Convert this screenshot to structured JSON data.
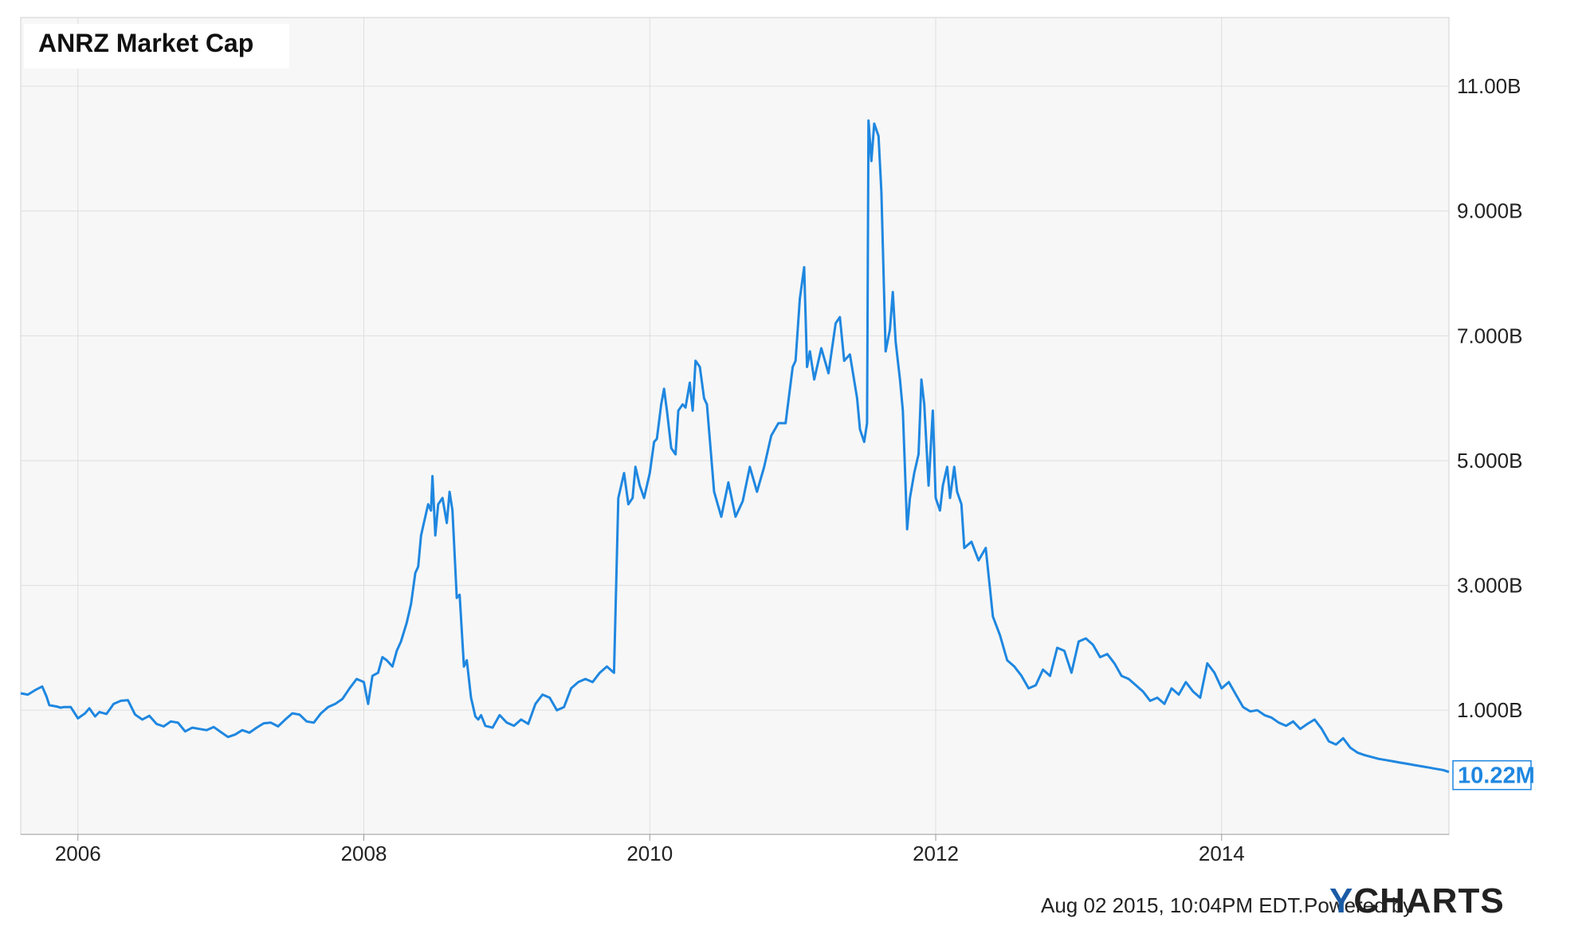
{
  "title": "ANRZ Market Cap",
  "footer": {
    "timestamp": "Aug 02 2015, 10:04PM EDT.",
    "powered_by": "Powered by",
    "brand_y": "Y",
    "brand_rest": "CHARTS"
  },
  "colors": {
    "line": "#1f87e0",
    "plot_bg": "#f7f7f7",
    "grid": "#dedede",
    "brand": "#1a5ba6"
  },
  "chart_data": {
    "type": "line",
    "title": "ANRZ Market Cap",
    "xlabel": "",
    "ylabel": "",
    "x_ticks": [
      "2006",
      "2008",
      "2010",
      "2012",
      "2014"
    ],
    "y_ticks": [
      "1.000B",
      "3.000B",
      "5.000B",
      "7.000B",
      "9.000B",
      "11.00B"
    ],
    "ylim": [
      -0.99,
      12.1
    ],
    "xlim": [
      2005.6,
      2015.59
    ],
    "grid": true,
    "y_axis_side": "right",
    "last_value_label": "10.22M",
    "series": [
      {
        "x": [
          2005.6,
          2005.65,
          2005.7,
          2005.75,
          2005.78,
          2005.8,
          2005.85,
          2005.88,
          2005.9,
          2005.95,
          2006.0,
          2006.05,
          2006.08,
          2006.12,
          2006.15,
          2006.2,
          2006.25,
          2006.3,
          2006.35,
          2006.4,
          2006.45,
          2006.5,
          2006.55,
          2006.6,
          2006.65,
          2006.7,
          2006.75,
          2006.8,
          2006.85,
          2006.9,
          2006.95,
          2007.0,
          2007.05,
          2007.1,
          2007.15,
          2007.2,
          2007.25,
          2007.3,
          2007.35,
          2007.4,
          2007.45,
          2007.5,
          2007.55,
          2007.6,
          2007.65,
          2007.7,
          2007.75,
          2007.8,
          2007.85,
          2007.9,
          2007.95,
          2008.0,
          2008.03,
          2008.06,
          2008.1,
          2008.13,
          2008.16,
          2008.2,
          2008.23,
          2008.26,
          2008.3,
          2008.33,
          2008.36,
          2008.38,
          2008.4,
          2008.42,
          2008.45,
          2008.47,
          2008.48,
          2008.5,
          2008.52,
          2008.55,
          2008.58,
          2008.6,
          2008.62,
          2008.65,
          2008.67,
          2008.7,
          2008.72,
          2008.75,
          2008.78,
          2008.8,
          2008.82,
          2008.85,
          2008.9,
          2008.95,
          2009.0,
          2009.05,
          2009.1,
          2009.15,
          2009.2,
          2009.25,
          2009.3,
          2009.35,
          2009.4,
          2009.45,
          2009.5,
          2009.55,
          2009.6,
          2009.65,
          2009.7,
          2009.75,
          2009.78,
          2009.8,
          2009.82,
          2009.85,
          2009.88,
          2009.9,
          2009.93,
          2009.96,
          2010.0,
          2010.03,
          2010.05,
          2010.08,
          2010.1,
          2010.12,
          2010.15,
          2010.18,
          2010.2,
          2010.23,
          2010.25,
          2010.28,
          2010.3,
          2010.32,
          2010.35,
          2010.38,
          2010.4,
          2010.45,
          2010.5,
          2010.55,
          2010.6,
          2010.65,
          2010.7,
          2010.75,
          2010.8,
          2010.85,
          2010.9,
          2010.95,
          2011.0,
          2011.02,
          2011.05,
          2011.08,
          2011.1,
          2011.12,
          2011.15,
          2011.2,
          2011.25,
          2011.3,
          2011.33,
          2011.36,
          2011.4,
          2011.45,
          2011.47,
          2011.5,
          2011.52,
          2011.53,
          2011.55,
          2011.57,
          2011.6,
          2011.62,
          2011.65,
          2011.68,
          2011.7,
          2011.72,
          2011.75,
          2011.77,
          2011.8,
          2011.82,
          2011.85,
          2011.88,
          2011.9,
          2011.92,
          2011.95,
          2011.98,
          2012.0,
          2012.03,
          2012.05,
          2012.08,
          2012.1,
          2012.13,
          2012.15,
          2012.18,
          2012.2,
          2012.25,
          2012.3,
          2012.35,
          2012.4,
          2012.45,
          2012.5,
          2012.55,
          2012.6,
          2012.65,
          2012.7,
          2012.75,
          2012.8,
          2012.85,
          2012.9,
          2012.95,
          2013.0,
          2013.05,
          2013.1,
          2013.15,
          2013.2,
          2013.25,
          2013.3,
          2013.35,
          2013.4,
          2013.45,
          2013.5,
          2013.55,
          2013.6,
          2013.65,
          2013.7,
          2013.75,
          2013.8,
          2013.85,
          2013.9,
          2013.95,
          2014.0,
          2014.05,
          2014.1,
          2014.15,
          2014.2,
          2014.25,
          2014.3,
          2014.35,
          2014.4,
          2014.45,
          2014.5,
          2014.55,
          2014.6,
          2014.65,
          2014.7,
          2014.75,
          2014.8,
          2014.85,
          2014.9,
          2014.95,
          2015.0,
          2015.05,
          2015.1,
          2015.15,
          2015.2,
          2015.25,
          2015.3,
          2015.35,
          2015.4,
          2015.45,
          2015.5,
          2015.55,
          2015.59
        ],
        "y": [
          1.27,
          1.25,
          1.32,
          1.38,
          1.22,
          1.08,
          1.06,
          1.04,
          1.05,
          1.05,
          0.87,
          0.95,
          1.03,
          0.9,
          0.97,
          0.94,
          1.1,
          1.15,
          1.16,
          0.93,
          0.85,
          0.91,
          0.78,
          0.74,
          0.82,
          0.8,
          0.66,
          0.72,
          0.7,
          0.68,
          0.73,
          0.65,
          0.57,
          0.61,
          0.68,
          0.64,
          0.72,
          0.79,
          0.8,
          0.74,
          0.85,
          0.95,
          0.93,
          0.82,
          0.8,
          0.95,
          1.05,
          1.1,
          1.18,
          1.35,
          1.5,
          1.45,
          1.1,
          1.55,
          1.6,
          1.85,
          1.8,
          1.7,
          1.95,
          2.1,
          2.4,
          2.7,
          3.2,
          3.3,
          3.8,
          4.0,
          4.3,
          4.2,
          4.75,
          3.8,
          4.3,
          4.4,
          4.0,
          4.5,
          4.2,
          2.8,
          2.85,
          1.7,
          1.8,
          1.2,
          0.9,
          0.85,
          0.92,
          0.75,
          0.72,
          0.92,
          0.8,
          0.75,
          0.85,
          0.78,
          1.1,
          1.25,
          1.2,
          1.0,
          1.05,
          1.35,
          1.45,
          1.5,
          1.45,
          1.6,
          1.7,
          1.6,
          4.4,
          4.6,
          4.8,
          4.3,
          4.4,
          4.9,
          4.6,
          4.4,
          4.8,
          5.3,
          5.35,
          5.9,
          6.15,
          5.8,
          5.2,
          5.1,
          5.8,
          5.9,
          5.85,
          6.25,
          5.8,
          6.6,
          6.5,
          6.0,
          5.9,
          4.5,
          4.1,
          4.65,
          4.1,
          4.35,
          4.9,
          4.5,
          4.9,
          5.4,
          5.6,
          5.6,
          6.5,
          6.6,
          7.6,
          8.1,
          6.5,
          6.75,
          6.3,
          6.8,
          6.4,
          7.2,
          7.3,
          6.6,
          6.7,
          6.0,
          5.5,
          5.3,
          5.6,
          10.45,
          9.8,
          10.4,
          10.2,
          9.3,
          6.75,
          7.1,
          7.7,
          6.9,
          6.3,
          5.8,
          3.9,
          4.4,
          4.8,
          5.1,
          6.3,
          5.9,
          4.6,
          5.8,
          4.4,
          4.2,
          4.6,
          4.9,
          4.4,
          4.9,
          4.5,
          4.3,
          3.6,
          3.7,
          3.4,
          3.6,
          2.5,
          2.2,
          1.8,
          1.7,
          1.55,
          1.35,
          1.4,
          1.65,
          1.55,
          2.0,
          1.95,
          1.6,
          2.1,
          2.15,
          2.05,
          1.85,
          1.9,
          1.75,
          1.55,
          1.5,
          1.4,
          1.3,
          1.15,
          1.2,
          1.1,
          1.35,
          1.25,
          1.45,
          1.3,
          1.2,
          1.75,
          1.6,
          1.35,
          1.45,
          1.25,
          1.05,
          0.98,
          1.0,
          0.92,
          0.88,
          0.8,
          0.75,
          0.82,
          0.7,
          0.78,
          0.85,
          0.7,
          0.5,
          0.45,
          0.55,
          0.4,
          0.32,
          0.28,
          0.25,
          0.22,
          0.2,
          0.18,
          0.16,
          0.14,
          0.12,
          0.1,
          0.08,
          0.06,
          0.04,
          0.01
        ]
      }
    ]
  }
}
